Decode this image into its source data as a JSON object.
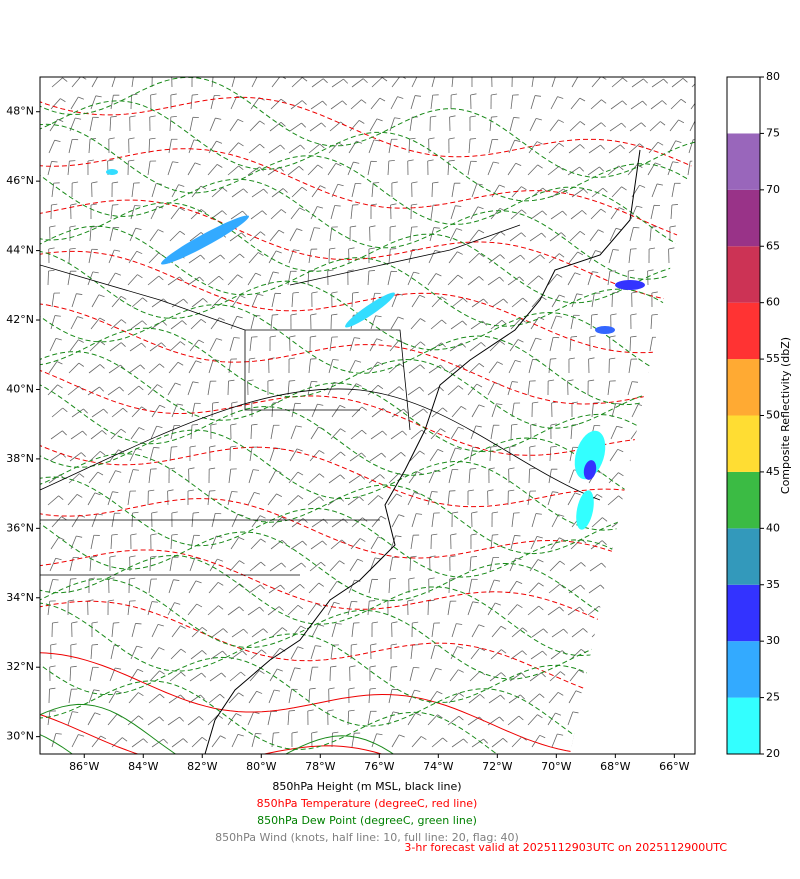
{
  "map": {
    "xlim": [
      -87.5,
      -65.3
    ],
    "ylim": [
      29.5,
      49
    ],
    "xticks": [
      {
        "value": -86,
        "label": "86°W"
      },
      {
        "value": -84,
        "label": "84°W"
      },
      {
        "value": -82,
        "label": "82°W"
      },
      {
        "value": -80,
        "label": "80°W"
      },
      {
        "value": -78,
        "label": "78°W"
      },
      {
        "value": -76,
        "label": "76°W"
      },
      {
        "value": -74,
        "label": "74°W"
      },
      {
        "value": -72,
        "label": "72°W"
      },
      {
        "value": -70,
        "label": "70°W"
      },
      {
        "value": -68,
        "label": "68°W"
      },
      {
        "value": -66,
        "label": "66°W"
      }
    ],
    "yticks": [
      {
        "value": 30,
        "label": "30°N"
      },
      {
        "value": 32,
        "label": "32°N"
      },
      {
        "value": 34,
        "label": "34°N"
      },
      {
        "value": 36,
        "label": "36°N"
      },
      {
        "value": 38,
        "label": "38°N"
      },
      {
        "value": 40,
        "label": "40°N"
      },
      {
        "value": 42,
        "label": "42°N"
      },
      {
        "value": 44,
        "label": "44°N"
      },
      {
        "value": 46,
        "label": "46°N"
      },
      {
        "value": 48,
        "label": "48°N"
      }
    ]
  },
  "colorbar": {
    "label": "Composite Reflectivity (dbZ)",
    "lim": [
      20,
      80
    ],
    "ticks": [
      20,
      25,
      30,
      35,
      40,
      45,
      50,
      55,
      60,
      65,
      70,
      75,
      80
    ],
    "levels": [
      20,
      25,
      30,
      35,
      40,
      45,
      50,
      55,
      60,
      65,
      70,
      75,
      80
    ],
    "colors": [
      "#33ffff",
      "#33aaff",
      "#3333ff",
      "#3399bb",
      "#3bbb44",
      "#ffdd33",
      "#ffaa33",
      "#ff3333",
      "#cc3355",
      "#993388",
      "#9966bb",
      "#ffffff"
    ]
  },
  "captions": [
    {
      "text": "850hPa Height (m MSL, black line)",
      "color": "#000000"
    },
    {
      "text": "850hPa Temperature (degreeC, red line)",
      "color": "#ff0000"
    },
    {
      "text": "850hPa Dew Point (degreeC, green line)",
      "color": "#008000"
    },
    {
      "text": "850hPa Wind (knots, half line: 10, full line: 20, flag: 40)",
      "color": "#808080"
    }
  ],
  "forecast": {
    "text": "3-hr forecast valid at 2025112903UTC on 2025112900UTC",
    "color": "#ff0000"
  }
}
